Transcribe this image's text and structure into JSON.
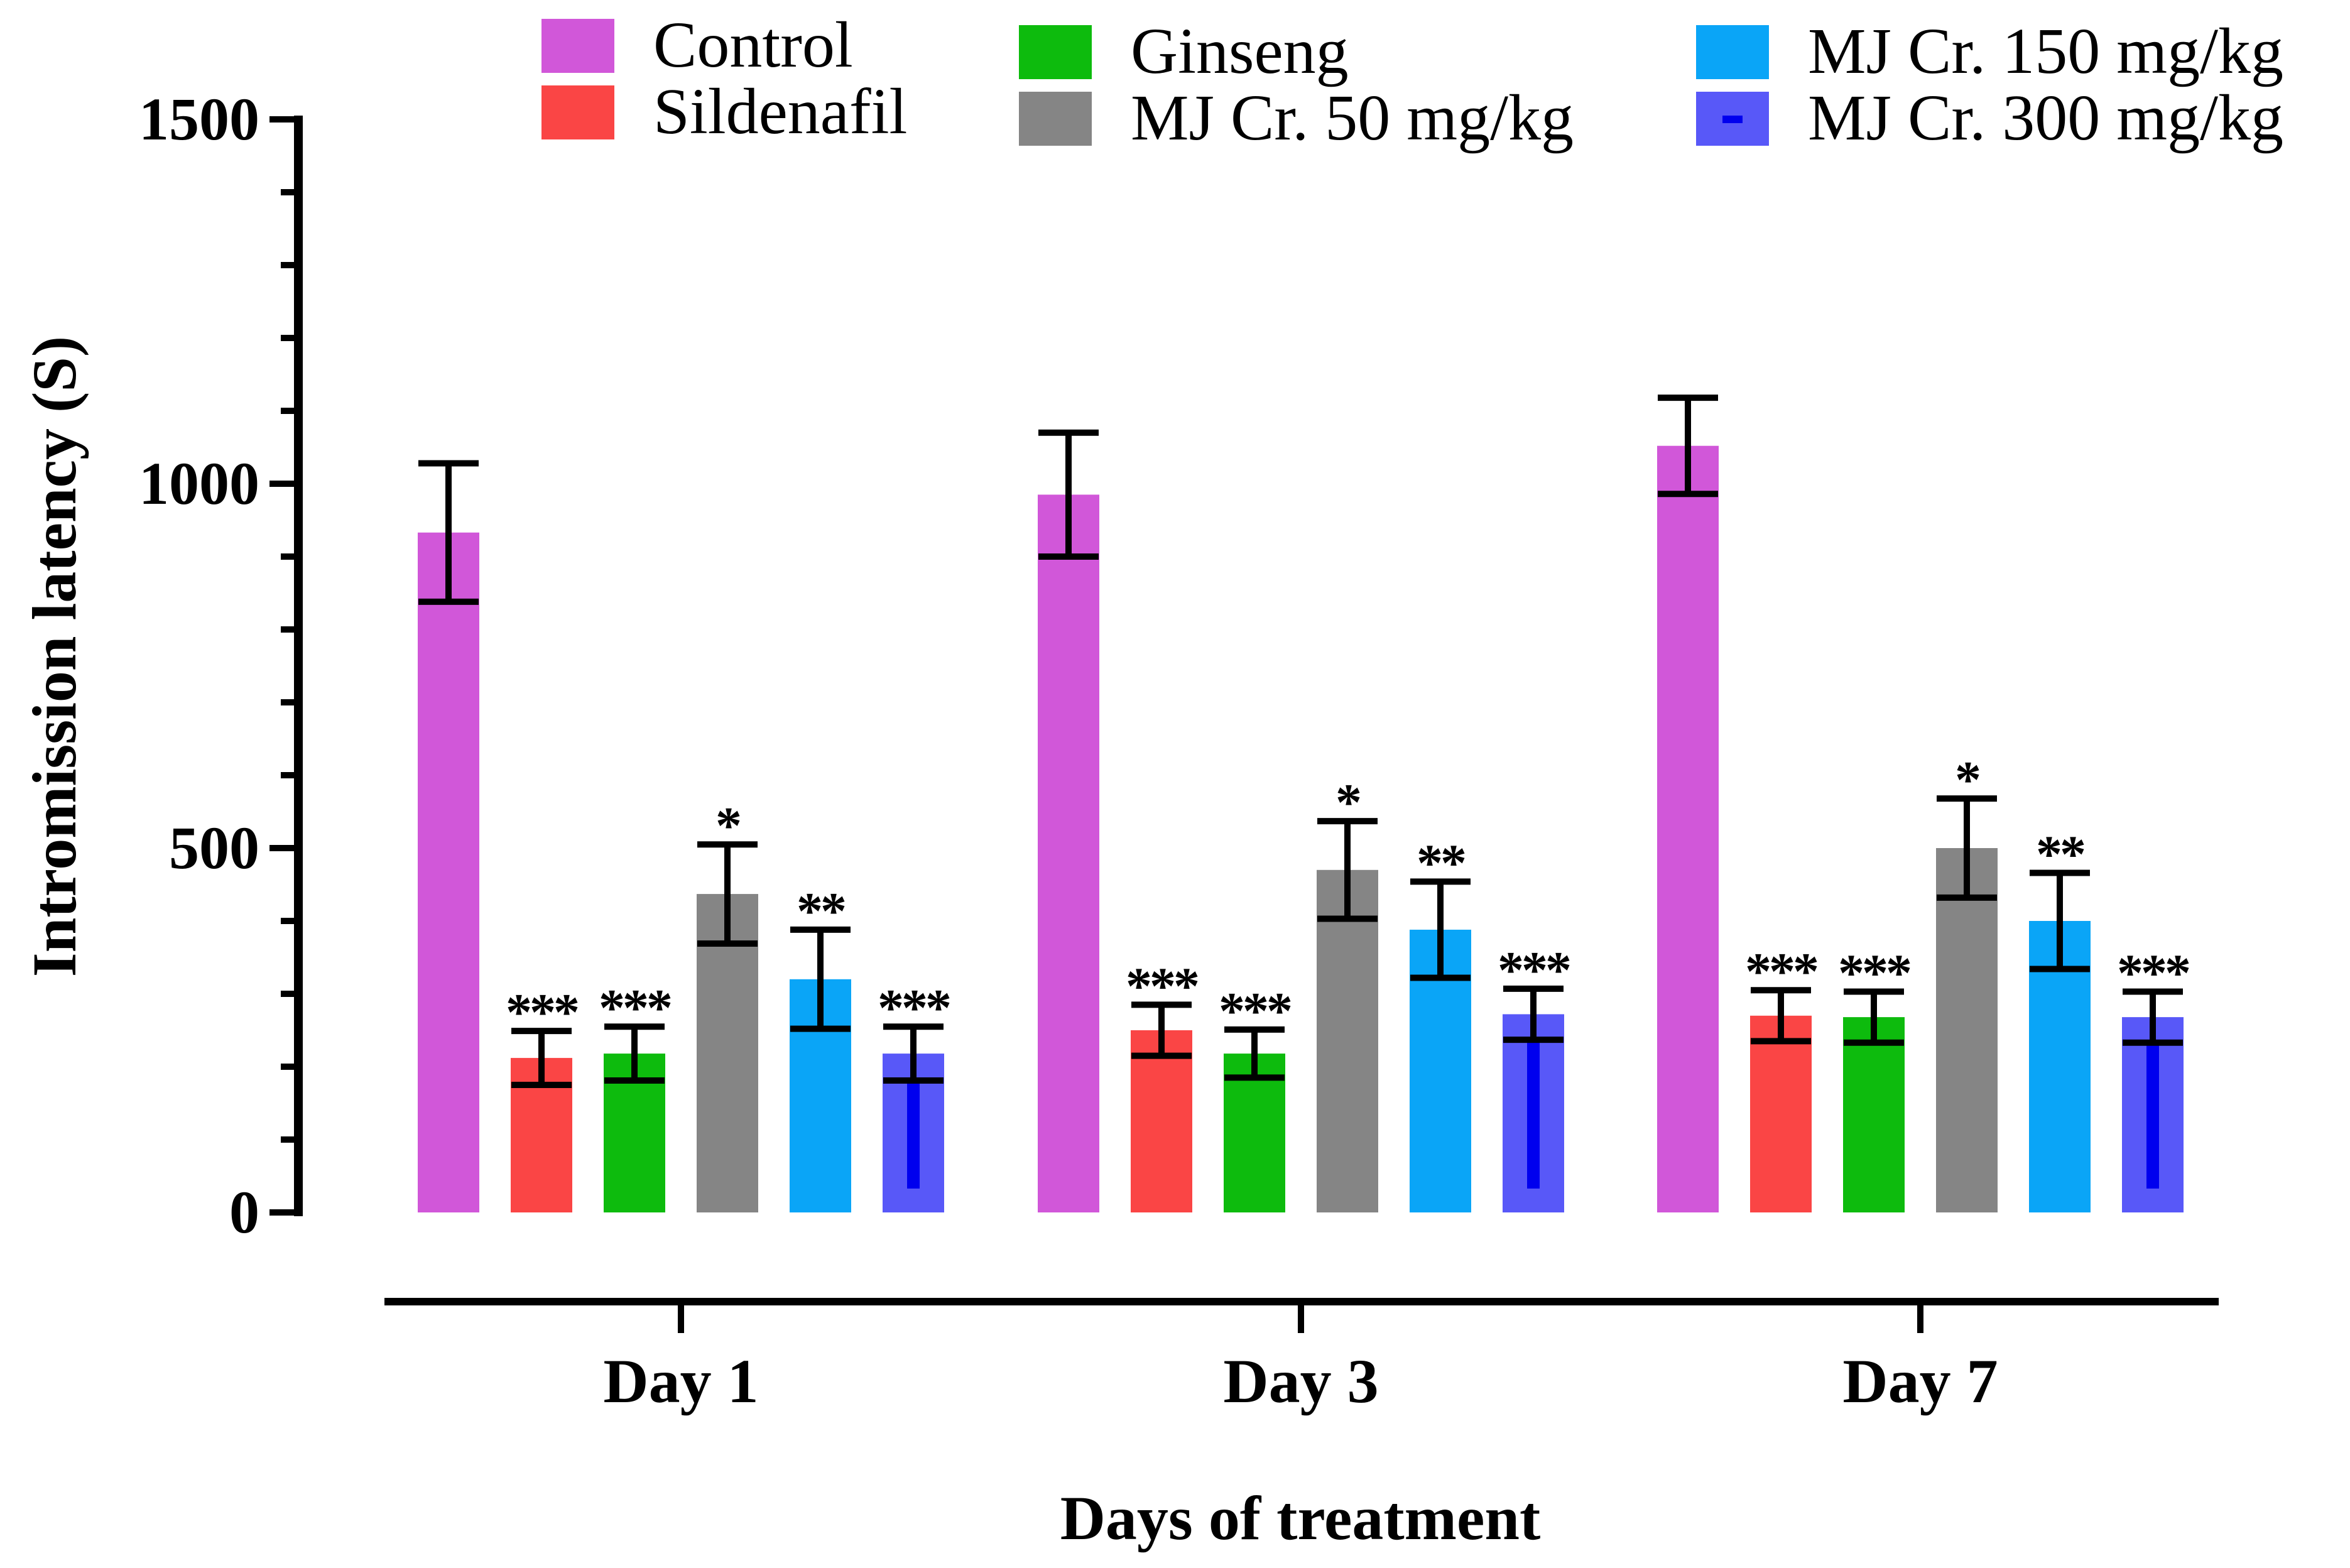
{
  "chart_data": {
    "type": "bar",
    "xlabel": "Days of treatment",
    "ylabel": "Intromission latency (S)",
    "ylim": [
      0,
      1500
    ],
    "yticks": [
      0,
      500,
      1000,
      1500
    ],
    "ytick_labels": [
      "0",
      "500",
      "1000",
      "1500"
    ],
    "categories": [
      "Day 1",
      "Day 3",
      "Day 7"
    ],
    "legend_position": "top",
    "series": [
      {
        "name": "Control",
        "color": "#d157d9",
        "values": [
          933,
          985,
          1052
        ],
        "errors": [
          95,
          85,
          66
        ],
        "sig": [
          "",
          "",
          ""
        ]
      },
      {
        "name": "Sildenafil",
        "color": "#fa4545",
        "values": [
          212,
          250,
          270
        ],
        "errors": [
          37,
          35,
          35
        ],
        "sig": [
          "***",
          "***",
          "***"
        ]
      },
      {
        "name": "Ginseng",
        "color": "#0dbb0d",
        "values": [
          218,
          218,
          268
        ],
        "errors": [
          37,
          33,
          35
        ],
        "sig": [
          "***",
          "***",
          "***"
        ]
      },
      {
        "name": "MJ Cr. 50 mg/kg",
        "color": "#858585",
        "values": [
          437,
          470,
          500
        ],
        "errors": [
          68,
          67,
          68
        ],
        "sig": [
          "*",
          "*",
          "*"
        ]
      },
      {
        "name": "MJ Cr. 150 mg/kg",
        "color": "#0aa5f7",
        "values": [
          320,
          388,
          400
        ],
        "errors": [
          68,
          66,
          66
        ],
        "sig": [
          "**",
          "**",
          "**"
        ]
      },
      {
        "name": "MJ Cr. 300 mg/kg",
        "color": "#5858f8",
        "values": [
          218,
          272,
          268
        ],
        "errors": [
          37,
          35,
          35
        ],
        "sig": [
          "***",
          "***",
          "***"
        ],
        "inner_color": "#0000ee"
      }
    ]
  }
}
